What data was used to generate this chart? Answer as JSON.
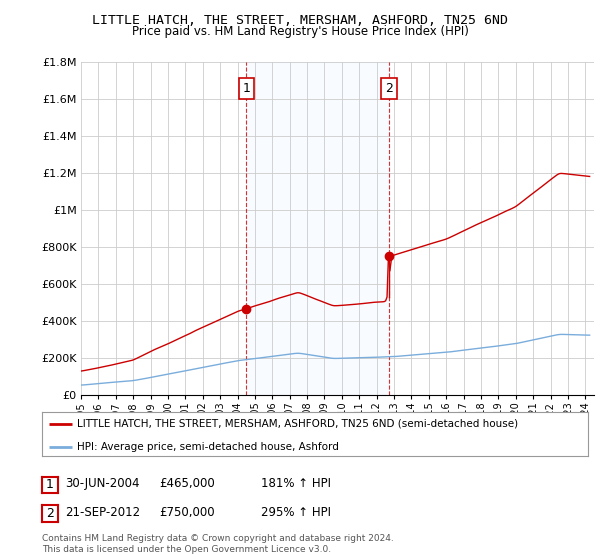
{
  "title": "LITTLE HATCH, THE STREET, MERSHAM, ASHFORD, TN25 6ND",
  "subtitle": "Price paid vs. HM Land Registry's House Price Index (HPI)",
  "legend_line1": "LITTLE HATCH, THE STREET, MERSHAM, ASHFORD, TN25 6ND (semi-detached house)",
  "legend_line2": "HPI: Average price, semi-detached house, Ashford",
  "sale1_date": "30-JUN-2004",
  "sale1_price": "£465,000",
  "sale1_hpi": "181% ↑ HPI",
  "sale2_date": "21-SEP-2012",
  "sale2_price": "£750,000",
  "sale2_hpi": "295% ↑ HPI",
  "footnote1": "Contains HM Land Registry data © Crown copyright and database right 2024.",
  "footnote2": "This data is licensed under the Open Government Licence v3.0.",
  "hpi_color": "#7aaddc",
  "property_color": "#cc0000",
  "bg_color": "#ffffff",
  "grid_color": "#cccccc",
  "sale_box_color": "#cc0000",
  "shade_color": "#ddeeff",
  "ylim": [
    0,
    1800000
  ],
  "yticks": [
    0,
    200000,
    400000,
    600000,
    800000,
    1000000,
    1200000,
    1400000,
    1600000,
    1800000
  ],
  "ytick_labels": [
    "£0",
    "£200K",
    "£400K",
    "£600K",
    "£800K",
    "£1M",
    "£1.2M",
    "£1.4M",
    "£1.6M",
    "£1.8M"
  ],
  "xlim_start": 1995.0,
  "xlim_end": 2024.5,
  "sale1_x": 2004.5,
  "sale1_y": 465000,
  "sale2_x": 2012.72,
  "sale2_y": 750000,
  "title_fontsize": 9.5,
  "subtitle_fontsize": 8.5
}
